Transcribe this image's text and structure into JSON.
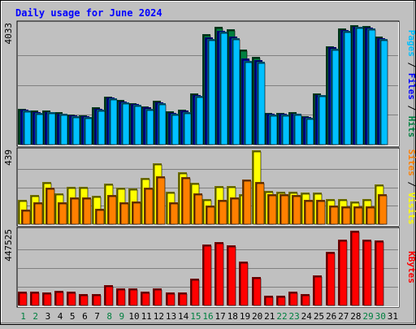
{
  "chart_data": {
    "type": "bar",
    "title": "Daily usage for June 2024",
    "categories": [
      "1",
      "2",
      "3",
      "4",
      "5",
      "6",
      "7",
      "8",
      "9",
      "10",
      "11",
      "12",
      "13",
      "14",
      "15",
      "16",
      "17",
      "18",
      "19",
      "20",
      "21",
      "22",
      "23",
      "24",
      "25",
      "26",
      "27",
      "28",
      "29",
      "30",
      "31"
    ],
    "weekend_days": [
      1,
      2,
      8,
      9,
      15,
      16,
      22,
      23,
      29,
      30
    ],
    "panels": [
      {
        "id": "hits-files-pages",
        "max_label": "4033",
        "ymax": 4033,
        "axis_labels": [
          {
            "text": "Pages",
            "color": "#00C0FF"
          },
          {
            "text": " / ",
            "color": "#000000"
          },
          {
            "text": "Files",
            "color": "#0000FF"
          },
          {
            "text": " / ",
            "color": "#000000"
          },
          {
            "text": "Hits",
            "color": "#008040"
          }
        ],
        "series": [
          {
            "name": "Hits",
            "color": "#008040",
            "values": [
              1210,
              1140,
              1160,
              1090,
              1010,
              990,
              1250,
              1630,
              1510,
              1410,
              1300,
              1480,
              1120,
              1180,
              1730,
              3720,
              3970,
              3900,
              3200,
              2970,
              1070,
              1070,
              1100,
              960,
              1740,
              3330,
              3920,
              4030,
              4000,
              3640,
              null
            ]
          },
          {
            "name": "Files",
            "color": "#0000FF",
            "values": [
              1170,
              1100,
              1110,
              1050,
              980,
              950,
              1200,
              1580,
              1460,
              1370,
              1250,
              1420,
              1080,
              1140,
              1680,
              3620,
              3840,
              3640,
              2900,
              2850,
              1040,
              1040,
              1050,
              920,
              1680,
              3280,
              3870,
              3980,
              3950,
              3600,
              null
            ]
          },
          {
            "name": "Pages",
            "color": "#00C0FF",
            "values": [
              1140,
              1070,
              1090,
              1030,
              960,
              940,
              1170,
              1560,
              1440,
              1340,
              1220,
              1390,
              1050,
              1110,
              1650,
              3580,
              3800,
              3600,
              2830,
              2790,
              1010,
              1010,
              1040,
              900,
              1660,
              3240,
              3830,
              3970,
              3910,
              3580,
              null
            ]
          }
        ]
      },
      {
        "id": "visits-sites",
        "max_label": "439",
        "ymax": 439,
        "axis_labels": [
          {
            "text": "Sites",
            "color": "#FF8000"
          },
          {
            "text": " / ",
            "color": "#000000"
          },
          {
            "text": "Visits",
            "color": "#FFFF00"
          }
        ],
        "series": [
          {
            "name": "Visits",
            "color": "#FFFF00",
            "values": [
              145,
              175,
              250,
              185,
              220,
              220,
              170,
              240,
              215,
              210,
              275,
              360,
              195,
              310,
              245,
              150,
              225,
              225,
              180,
              439,
              200,
              195,
              195,
              190,
              190,
              150,
              150,
              135,
              150,
              235,
              null
            ]
          },
          {
            "name": "Sites",
            "color": "#FF8000",
            "values": [
              85,
              130,
              215,
              130,
              160,
              160,
              90,
              175,
              130,
              135,
              215,
              285,
              130,
              280,
              185,
              110,
              145,
              160,
              265,
              250,
              180,
              180,
              175,
              145,
              145,
              110,
              105,
              105,
              105,
              180,
              null
            ]
          }
        ]
      },
      {
        "id": "kbytes",
        "max_label": "447525",
        "ymax": 447525,
        "axis_labels": [
          {
            "text": "KBytes",
            "color": "#FF0000"
          }
        ],
        "series": [
          {
            "name": "KBytes",
            "color": "#FF0000",
            "values": [
              82000,
              82000,
              76000,
              88000,
              82000,
              70000,
              67000,
              124000,
              103000,
              103000,
              82000,
              103000,
              76000,
              76000,
              162000,
              363000,
              378000,
              359000,
              261000,
              170000,
              57000,
              57000,
              82000,
              67000,
              179000,
              320000,
              395000,
              447525,
              395000,
              388000,
              null
            ]
          }
        ]
      }
    ]
  }
}
